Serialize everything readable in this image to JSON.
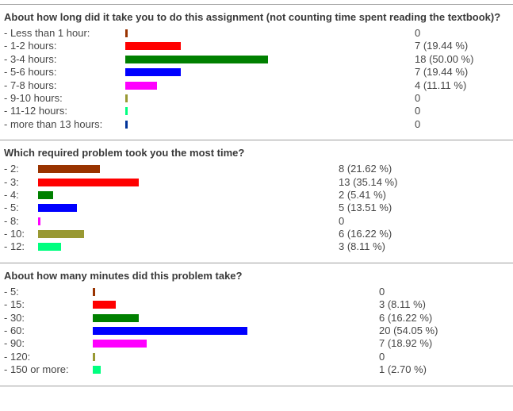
{
  "chart_data": [
    {
      "type": "bar",
      "orientation": "horizontal",
      "title": "About how long did it take you to do this assignment (not counting time spent reading the textbook)?",
      "categories": [
        "- Less than 1 hour:",
        "- 1-2 hours:",
        "- 3-4 hours:",
        "- 5-6 hours:",
        "- 7-8 hours:",
        "- 9-10 hours:",
        "- 11-12 hours:",
        "- more than 13 hours:"
      ],
      "values": [
        0,
        7,
        18,
        7,
        4,
        0,
        0,
        0
      ],
      "percentages": [
        0,
        19.44,
        50.0,
        19.44,
        11.11,
        0,
        0,
        0
      ],
      "value_labels": [
        "0",
        "7 (19.44 %)",
        "18 (50.00 %)",
        "7 (19.44 %)",
        "4 (11.11 %)",
        "0",
        "0",
        "0"
      ],
      "bar_colors": [
        "#993300",
        "#ff0000",
        "#008000",
        "#0000ff",
        "#ff00ff",
        "#999933",
        "#00ff7f",
        "#003399"
      ],
      "xlim_percent": [
        0,
        100
      ],
      "grid": false,
      "legend": false
    },
    {
      "type": "bar",
      "orientation": "horizontal",
      "title": "Which required problem took you the most time?",
      "categories": [
        "- 2:",
        "- 3:",
        "- 4:",
        "- 5:",
        "- 8:",
        "- 10:",
        "- 12:"
      ],
      "values": [
        8,
        13,
        2,
        5,
        0,
        6,
        3
      ],
      "percentages": [
        21.62,
        35.14,
        5.41,
        13.51,
        0,
        16.22,
        8.11
      ],
      "value_labels": [
        "8 (21.62 %)",
        "13 (35.14 %)",
        "2 (5.41 %)",
        "5 (13.51 %)",
        "0",
        "6 (16.22 %)",
        "3 (8.11 %)"
      ],
      "bar_colors": [
        "#993300",
        "#ff0000",
        "#008000",
        "#0000ff",
        "#ff00ff",
        "#999933",
        "#00ff7f"
      ],
      "xlim_percent": [
        0,
        100
      ],
      "grid": false,
      "legend": false
    },
    {
      "type": "bar",
      "orientation": "horizontal",
      "title": "About how many minutes did this problem take?",
      "categories": [
        "- 5:",
        "- 15:",
        "- 30:",
        "- 60:",
        "- 90:",
        "- 120:",
        "- 150 or more:"
      ],
      "values": [
        0,
        3,
        6,
        20,
        7,
        0,
        1
      ],
      "percentages": [
        0,
        8.11,
        16.22,
        54.05,
        18.92,
        0,
        2.7
      ],
      "value_labels": [
        "0",
        "3 (8.11 %)",
        "6 (16.22 %)",
        "20 (54.05 %)",
        "7 (18.92 %)",
        "0",
        "1 (2.70 %)"
      ],
      "bar_colors": [
        "#993300",
        "#ff0000",
        "#008000",
        "#0000ff",
        "#ff00ff",
        "#999933",
        "#00ff7f"
      ],
      "xlim_percent": [
        0,
        100
      ],
      "grid": false,
      "legend": false
    }
  ],
  "style": {
    "divider_color": "#9e9e9e",
    "text_color": "#464646",
    "title_color": "#3a3a3a"
  }
}
